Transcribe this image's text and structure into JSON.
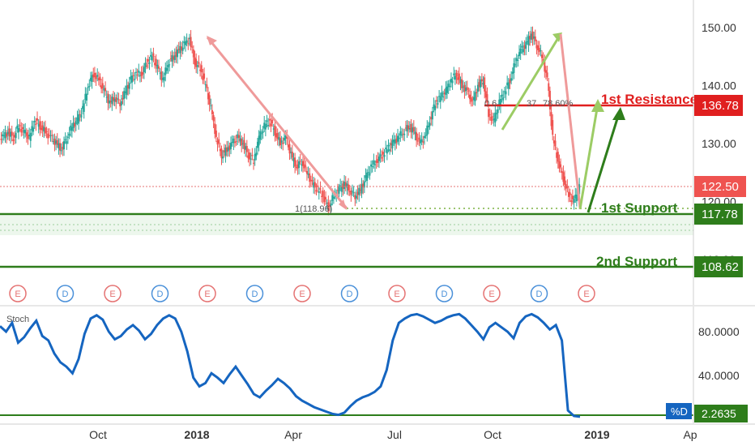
{
  "chart_data": [
    {
      "type": "candlestick",
      "x_tick_labels": [
        "Oct",
        "2018",
        "Apr",
        "Jul",
        "Oct",
        "2019",
        "Ap"
      ],
      "y_tick_labels": [
        "150.00",
        "140.00",
        "130.00",
        "120.00",
        "110.00"
      ],
      "ylim": [
        104,
        154
      ],
      "grid": false,
      "last_price": "122.50",
      "close_series": [
        131,
        132,
        131,
        133,
        132,
        131,
        134,
        133,
        132,
        131,
        130,
        129,
        131,
        133,
        134,
        136,
        140,
        142,
        141,
        139,
        137,
        138,
        137,
        139,
        141,
        142,
        142,
        144,
        145,
        143,
        141,
        144,
        145,
        146,
        147,
        148,
        144,
        143,
        140,
        136,
        131,
        128,
        129,
        130,
        131,
        130,
        128,
        127,
        131,
        133,
        134,
        132,
        130,
        131,
        128,
        126,
        127,
        125,
        123,
        122,
        121,
        119,
        121,
        122,
        123,
        122,
        121,
        122,
        124,
        126,
        127,
        128,
        129,
        130,
        131,
        132,
        133,
        132,
        130,
        131,
        134,
        137,
        138,
        139,
        141,
        142,
        140,
        139,
        137,
        140,
        141,
        135,
        134,
        137,
        139,
        141,
        144,
        146,
        147,
        149,
        147,
        145,
        141,
        131,
        127,
        124,
        121,
        120,
        122.5
      ],
      "annotations": {
        "resistance": {
          "label": "1st Resistance",
          "value": "136.78"
        },
        "support_1": {
          "label": "1st Support",
          "value": "117.78"
        },
        "support_2": {
          "label": "2nd Support",
          "value": "108.62"
        },
        "fib_bottom_label": "1(118.96)",
        "fib_top_label": "0.6",
        "fib_mid_label": "37",
        "fib_mid2_label": "78.60%"
      },
      "events": [
        "E",
        "D",
        "E",
        "D",
        "E",
        "D",
        "E",
        "D",
        "E",
        "D",
        "E",
        "D",
        "E"
      ],
      "colors": {
        "up": "#26a69a",
        "down": "#ef5350",
        "resistance": "#e01f1f",
        "support": "#2e7d1b",
        "arrow_down": "#ef9a9a",
        "arrow_up": "#8bc34a",
        "event_earnings": "#e57373",
        "event_dividend": "#4a90d9"
      }
    },
    {
      "type": "line",
      "title": "Stoch",
      "y_tick_labels": [
        "80.0000",
        "40.0000"
      ],
      "ylim": [
        0,
        106
      ],
      "series": [
        {
          "name": "%D",
          "last_value": "2.2635",
          "values": [
            85,
            80,
            88,
            70,
            75,
            83,
            90,
            76,
            72,
            60,
            52,
            48,
            42,
            55,
            78,
            92,
            95,
            91,
            80,
            73,
            76,
            82,
            86,
            81,
            73,
            78,
            86,
            92,
            95,
            92,
            80,
            62,
            38,
            30,
            33,
            42,
            38,
            33,
            41,
            48,
            40,
            32,
            23,
            20,
            26,
            31,
            37,
            33,
            28,
            21,
            17,
            14,
            11,
            9,
            7,
            5,
            4,
            6,
            12,
            17,
            20,
            22,
            25,
            30,
            45,
            72,
            88,
            92,
            95,
            96,
            94,
            91,
            88,
            90,
            93,
            95,
            96,
            92,
            86,
            80,
            73,
            84,
            88,
            84,
            80,
            74,
            88,
            94,
            96,
            93,
            88,
            82,
            86,
            72,
            8,
            3,
            2.26
          ],
          "color": "#1565c0"
        }
      ]
    }
  ]
}
